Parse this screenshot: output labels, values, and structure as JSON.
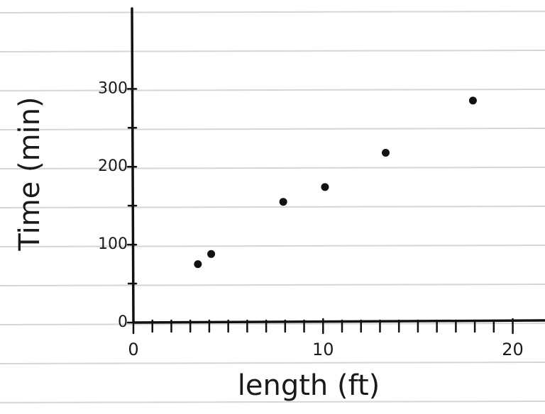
{
  "chart_data": {
    "type": "scatter",
    "x_label": "length (ft)",
    "y_label": "Time (min)",
    "x": [
      3.4,
      4.1,
      7.9,
      10.1,
      13.3,
      17.9
    ],
    "values": [
      75,
      88,
      155,
      174,
      218,
      285
    ],
    "color": "#111111",
    "xlim": [
      0,
      21.7
    ],
    "ylim": [
      0,
      405
    ],
    "xticks": [
      0,
      10,
      20
    ],
    "yticks": [
      0,
      100,
      200,
      300
    ],
    "x_minor_ticks": [
      1,
      2,
      3,
      4,
      5,
      6,
      7,
      8,
      9,
      11,
      12,
      13,
      14,
      15,
      16,
      17,
      18,
      19
    ],
    "y_minor_ticks": [
      50,
      150,
      250
    ]
  }
}
